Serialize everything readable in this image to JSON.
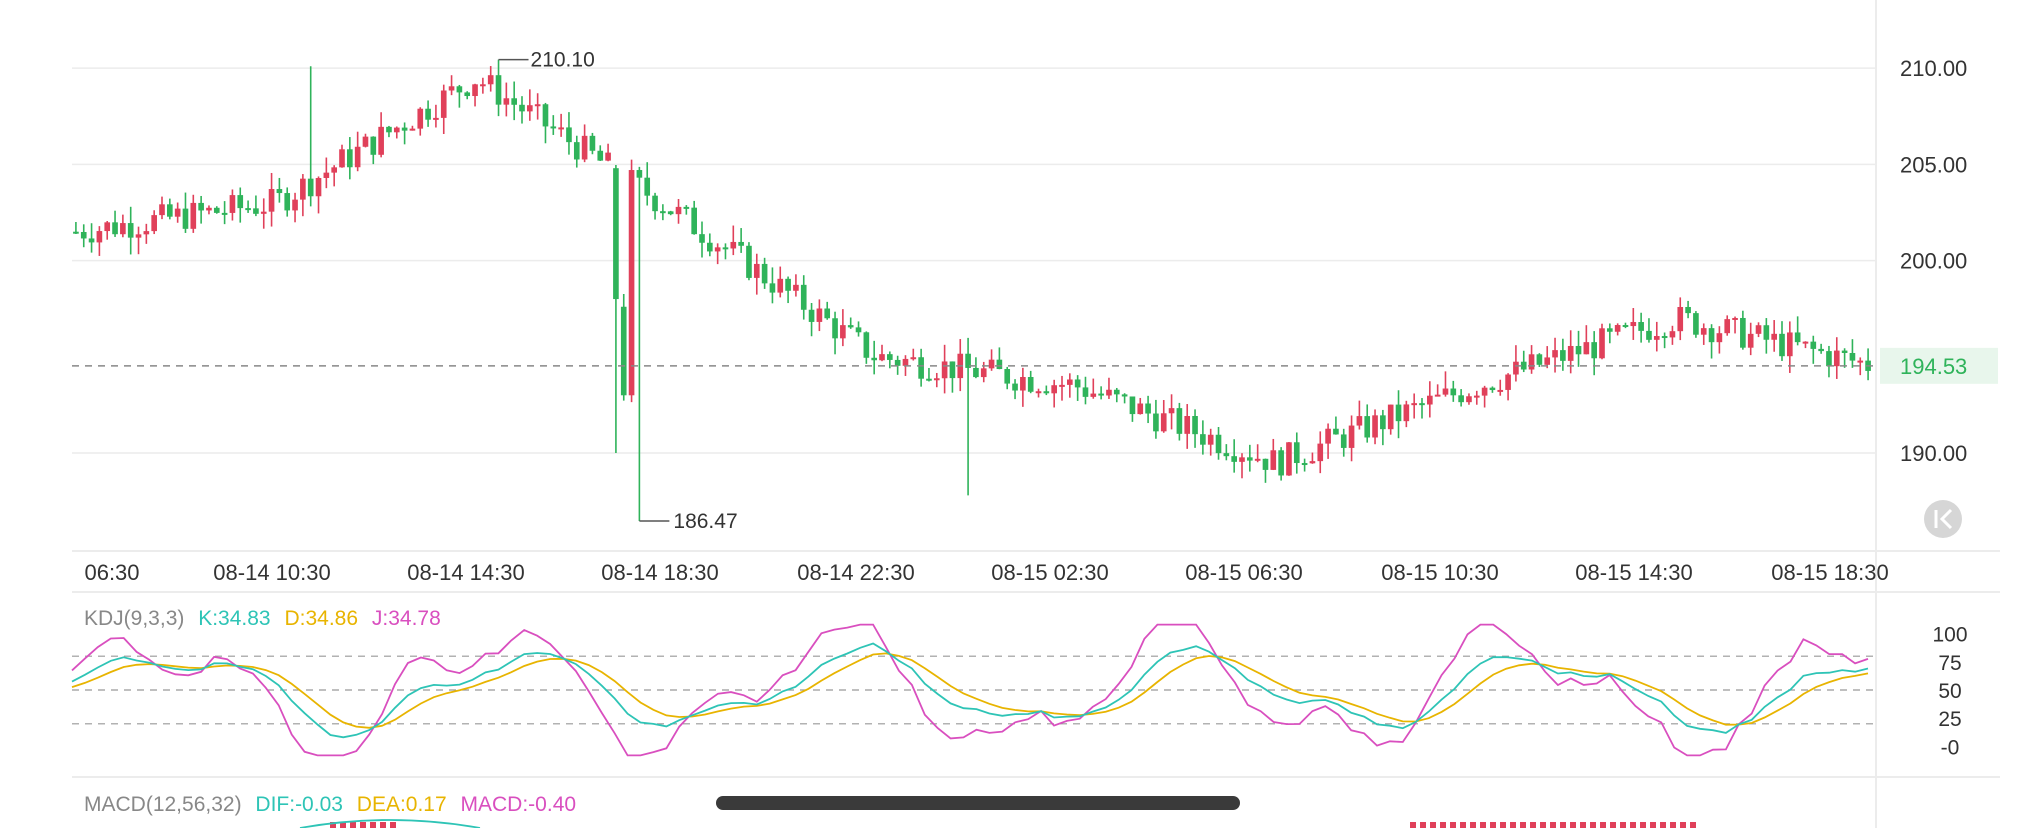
{
  "colors": {
    "up": "#e0405a",
    "down": "#2fb35a",
    "grid": "#ececec",
    "axis_text": "#333333",
    "last_price_bg": "#e8f6ec",
    "last_price_text": "#2fb35a",
    "k": "#2ec4b6",
    "d": "#e8b400",
    "j": "#d94fbf",
    "label_gray": "#888888"
  },
  "chart_data": [
    {
      "type": "candlestick",
      "title": "",
      "x_ticks": [
        "06:30",
        "08-14 10:30",
        "08-14 14:30",
        "08-14 18:30",
        "08-14 22:30",
        "08-15 02:30",
        "08-15 06:30",
        "08-15 10:30",
        "08-15 14:30",
        "08-15 18:30"
      ],
      "y_ticks": [
        "210.00",
        "205.00",
        "200.00",
        "190.00"
      ],
      "ylim": [
        186.0,
        212.5
      ],
      "last_price": "194.53",
      "high_marker": "210.10",
      "low_marker": "186.47",
      "grid": true,
      "key_points": [
        {
          "x": "06:30",
          "price": 201.5
        },
        {
          "x": "08-14 10:30",
          "price": 203.0
        },
        {
          "x": "08-14 14:30",
          "price": 209.5
        },
        {
          "x": "08-14 18:30",
          "price": 202.5
        },
        {
          "x": "08-14 22:30",
          "price": 195.0
        },
        {
          "x": "08-15 02:30",
          "price": 193.5
        },
        {
          "x": "08-15 06:30",
          "price": 189.5
        },
        {
          "x": "08-15 10:30",
          "price": 193.5
        },
        {
          "x": "08-15 14:30",
          "price": 197.0
        },
        {
          "x": "08-15 18:30",
          "price": 194.5
        }
      ]
    },
    {
      "type": "line",
      "indicator": "KDJ(9,3,3)",
      "y_ticks": [
        "100",
        "75",
        "50",
        "25",
        "-0"
      ],
      "series": [
        {
          "name": "K",
          "value_label": "K:34.83"
        },
        {
          "name": "D",
          "value_label": "D:34.86"
        },
        {
          "name": "J",
          "value_label": "J:34.78"
        }
      ]
    },
    {
      "type": "bar",
      "indicator": "MACD(12,56,32)",
      "series": [
        {
          "name": "DIF",
          "value_label": "DIF:-0.03"
        },
        {
          "name": "DEA",
          "value_label": "DEA:0.17"
        },
        {
          "name": "MACD",
          "value_label": "MACD:-0.40"
        }
      ]
    }
  ],
  "icons": {
    "collapse": "chevron-left-bar-icon"
  }
}
